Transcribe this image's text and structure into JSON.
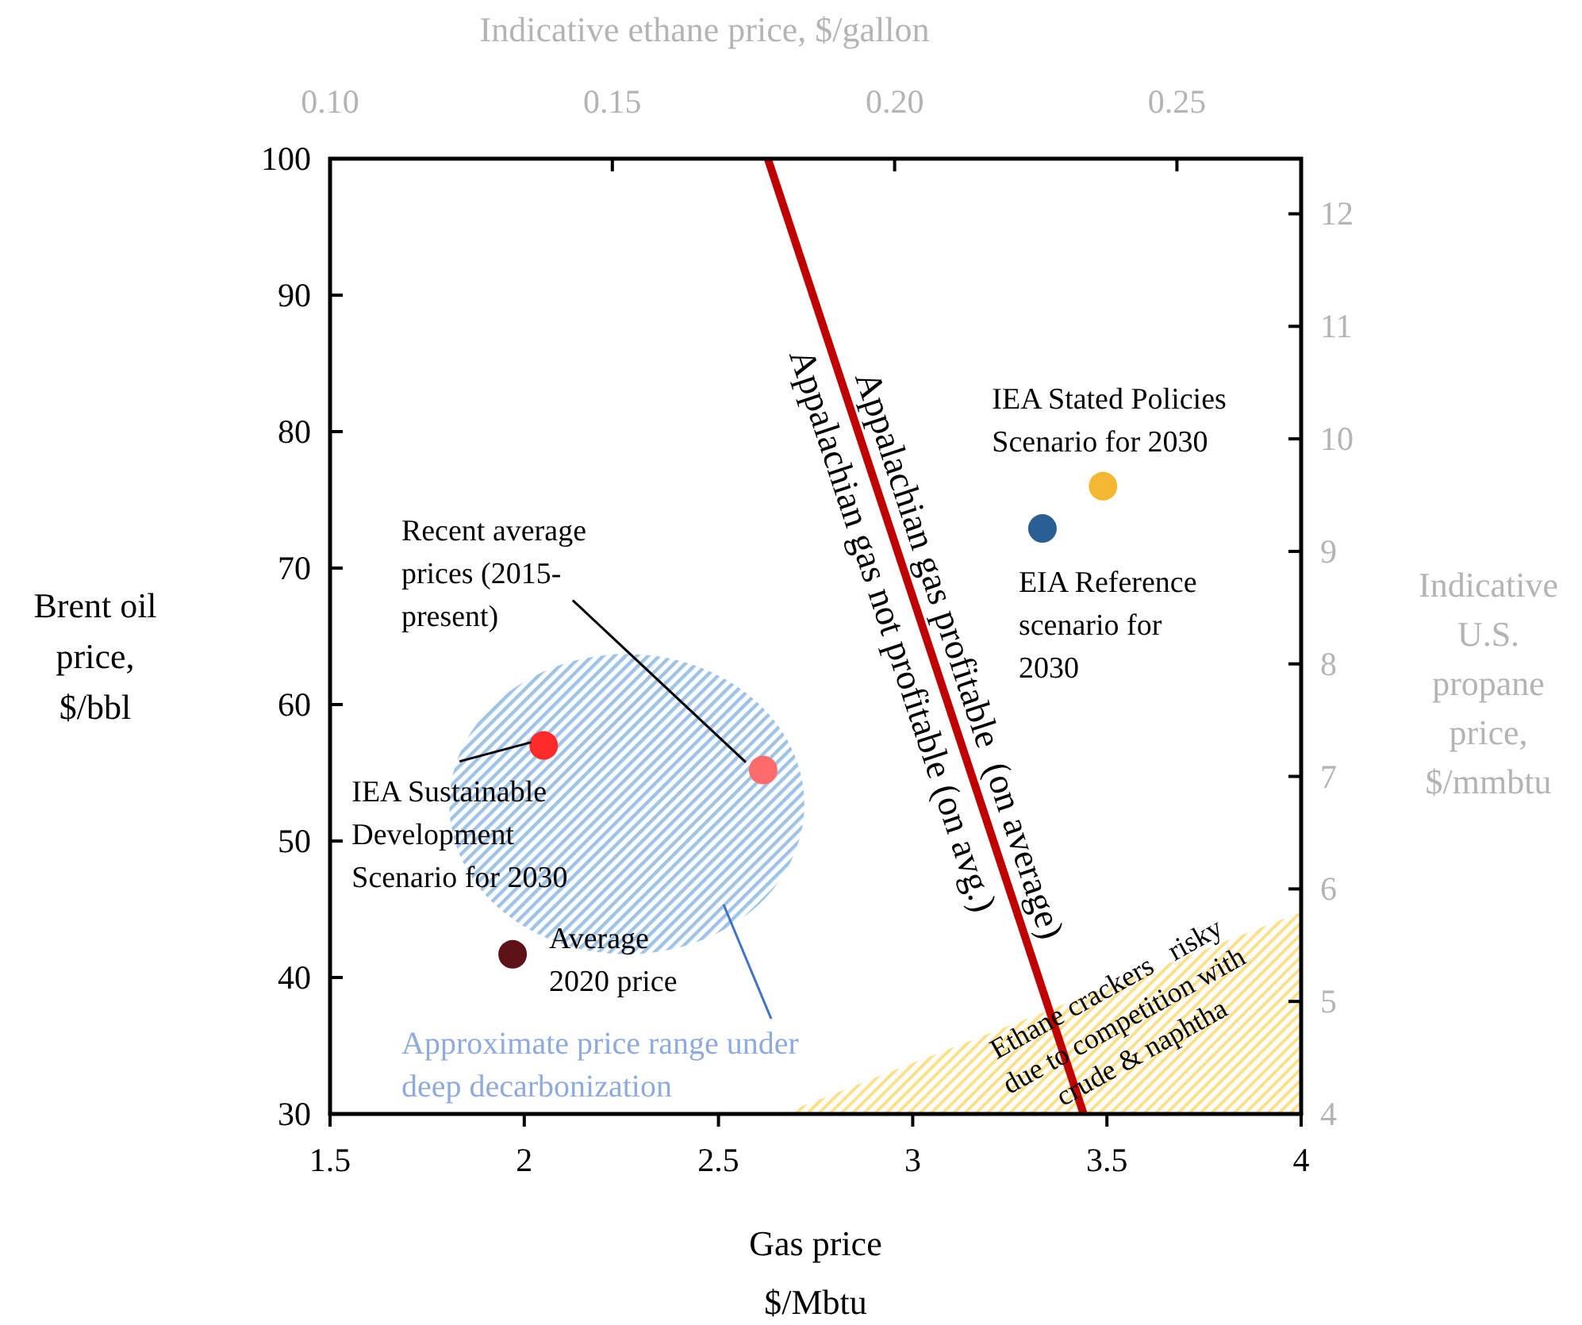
{
  "chart_data": {
    "type": "scatter",
    "xlabel": "Gas price\n$/Mbtu",
    "ylabel": "Brent oil\nprice,\n$/bbl",
    "x2label": "Indicative ethane price, $/gallon",
    "y2label": "Indicative\nU.S.\npropane\nprice,\n$/mmbtu",
    "xlim": [
      1.5,
      4
    ],
    "xticks": [
      1.5,
      2,
      2.5,
      3,
      3.5,
      4
    ],
    "ylim": [
      30,
      100
    ],
    "yticks": [
      30,
      40,
      50,
      60,
      70,
      80,
      90,
      100
    ],
    "x2lim": [
      0.1,
      0.272
    ],
    "x2ticks": [
      {
        "value": 0.1,
        "label": "0.10"
      },
      0.15,
      {
        "value": 0.2,
        "label": "0.20"
      },
      0.25
    ],
    "y2lim": [
      4,
      12.49
    ],
    "y2ticks": [
      4,
      5,
      6,
      7,
      8,
      9,
      10,
      11,
      12
    ],
    "grid": false,
    "legend": false,
    "marker": "circle",
    "series": [
      {
        "name": "IEA Sustainable\nDevelopment\nScenario for 2030",
        "color": "#ff2b2b",
        "x": [
          2.05
        ],
        "values": [
          57
        ]
      },
      {
        "name": "Recent average\nprices (2015-\npresent)",
        "color": "#ff6a6a",
        "x": [
          2.615
        ],
        "values": [
          55.2
        ]
      },
      {
        "name": "Average\n2020 price",
        "color": "#5e1116",
        "x": [
          1.97
        ],
        "values": [
          41.7
        ]
      },
      {
        "name": "EIA Reference\nscenario for\n2030",
        "color": "#2a5f93",
        "x": [
          3.334
        ],
        "values": [
          72.9
        ]
      },
      {
        "name": "IEA Stated Policies\nScenario for 2030",
        "color": "#f4b731",
        "x": [
          3.49
        ],
        "values": [
          76
        ]
      },
      {
        "type": "line",
        "color": "#c00000",
        "x": [
          2.627,
          3.44
        ],
        "values": [
          100,
          30
        ],
        "line_style": "solid",
        "marker": "none"
      }
    ],
    "annotations": [
      "Appalachian gas profitable  (on average)",
      "Appalachian gas not profitable (on avg.)",
      "Ethane crackers   risky\ndue to competition with\ncrude & naphtha",
      "Approximate price range under\ndeep decarbonization"
    ]
  }
}
